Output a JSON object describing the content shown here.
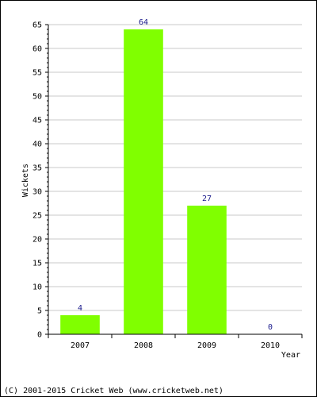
{
  "chart_data": {
    "type": "bar",
    "categories": [
      "2007",
      "2008",
      "2009",
      "2010"
    ],
    "values": [
      4,
      64,
      27,
      0
    ],
    "data_labels": [
      "4",
      "64",
      "27",
      "0"
    ],
    "title": "",
    "xlabel": "Year",
    "ylabel": "Wickets",
    "ylim": [
      0,
      65
    ],
    "yticks": [
      0,
      5,
      10,
      15,
      20,
      25,
      30,
      35,
      40,
      45,
      50,
      55,
      60,
      65
    ],
    "grid": true,
    "bar_color": "#80ff00",
    "grid_color": "#c8c8c8",
    "label_color": "#1a1a8c"
  },
  "footer": {
    "text": "(C) 2001-2015 Cricket Web (www.cricketweb.net)"
  }
}
